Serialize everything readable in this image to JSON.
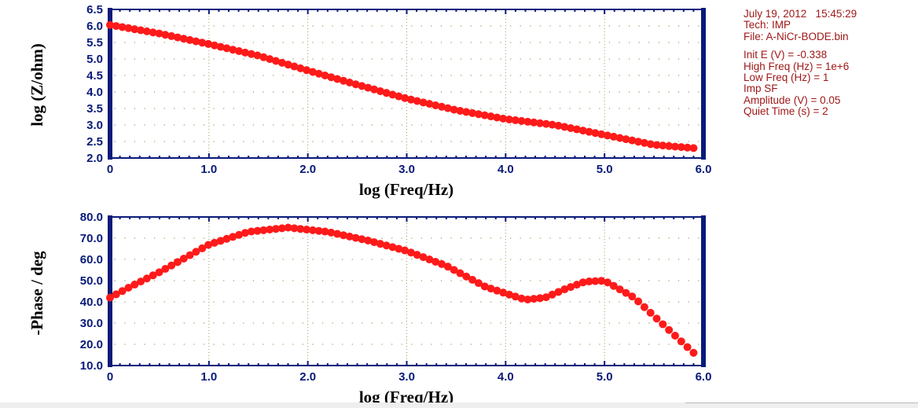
{
  "info": {
    "date_time": "July 19, 2012   15:45:29",
    "tech": "Tech: IMP",
    "file": "File: A-NiCr-BODE.bin",
    "params": [
      "Init E (V) = -0.338",
      "High Freq (Hz) = 1e+6",
      "Low Freq (Hz) = 1",
      "Imp SF",
      "Amplitude (V) = 0.05",
      "Quiet Time (s) = 2"
    ]
  },
  "colors": {
    "marker": "#ff1a1a",
    "axis_frame": "#0a1a7a",
    "grid": "#9a9a60",
    "info_text": "#a01818"
  },
  "chart_data": [
    {
      "type": "scatter",
      "xlabel": "log (Freq/Hz)",
      "ylabel": "log (Z/ohm)",
      "xlim": [
        0,
        6
      ],
      "ylim": [
        2.0,
        6.5
      ],
      "xticks": [
        "0",
        "1.0",
        "2.0",
        "3.0",
        "4.0",
        "5.0",
        "6.0"
      ],
      "yticks": [
        "2.0",
        "2.5",
        "3.0",
        "3.5",
        "4.0",
        "4.5",
        "5.0",
        "5.5",
        "6.0",
        "6.5"
      ],
      "grid": true,
      "series": [
        {
          "x": [
            0.0,
            0.5,
            1.0,
            1.5,
            2.0,
            2.5,
            3.0,
            3.5,
            4.0,
            4.5,
            5.0,
            5.5,
            5.9
          ],
          "y": [
            6.03,
            5.77,
            5.45,
            5.1,
            4.65,
            4.22,
            3.8,
            3.45,
            3.18,
            3.0,
            2.7,
            2.4,
            2.3
          ]
        }
      ]
    },
    {
      "type": "scatter",
      "xlabel": "log (Freq/Hz)",
      "ylabel": "-Phase / deg",
      "xlim": [
        0,
        6
      ],
      "ylim": [
        10,
        80
      ],
      "xticks": [
        "0",
        "1.0",
        "2.0",
        "3.0",
        "4.0",
        "5.0",
        "6.0"
      ],
      "yticks": [
        "10.0",
        "20.0",
        "30.0",
        "40.0",
        "50.0",
        "60.0",
        "70.0",
        "80.0"
      ],
      "grid": true,
      "series": [
        {
          "x": [
            0.0,
            0.2,
            0.5,
            1.0,
            1.4,
            1.8,
            2.2,
            2.6,
            3.0,
            3.4,
            3.8,
            4.2,
            4.4,
            4.6,
            4.8,
            5.0,
            5.3,
            5.6,
            5.9
          ],
          "y": [
            42,
            47,
            54,
            67,
            73,
            75,
            73,
            69,
            64,
            57,
            47,
            41,
            42,
            46,
            49.5,
            50,
            42,
            29,
            16
          ]
        }
      ]
    }
  ]
}
